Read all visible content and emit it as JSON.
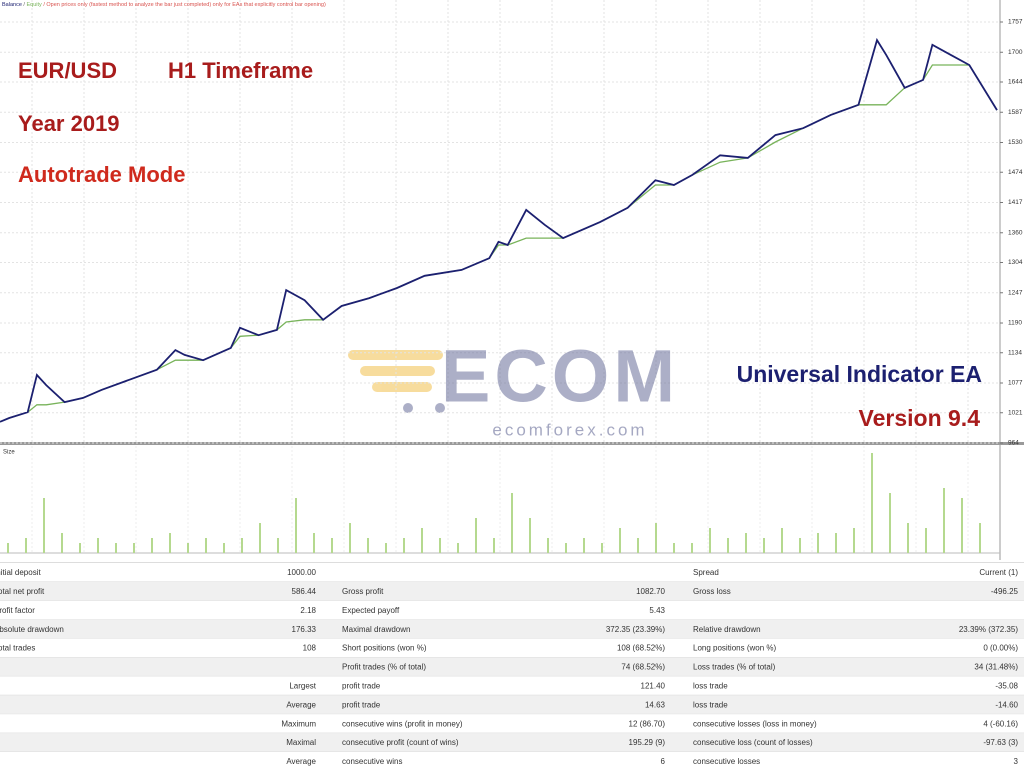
{
  "chart_data": [
    {
      "type": "line",
      "subtitle": "/ Open prices only (fastest method to analyze the bar just completed) only for EAs that explicitly control bar opening)",
      "legend_separator": "/",
      "annotations": [
        "EUR/USD",
        "H1 Timeframe",
        "Year 2019",
        "Autotrade Mode",
        "Universal Indicator EA",
        "Version 9.4"
      ],
      "x": [
        0,
        1,
        3,
        4,
        5,
        7,
        9,
        11,
        14,
        17,
        19,
        20,
        22,
        25,
        26,
        28,
        30,
        31,
        33,
        35,
        37,
        40,
        43,
        46,
        50,
        53,
        54,
        55,
        57,
        59,
        61,
        65,
        68,
        71,
        73,
        75,
        78,
        81,
        84,
        87,
        90,
        93,
        95,
        96,
        98,
        100,
        101,
        103,
        105,
        108
      ],
      "xlim": [
        0,
        108
      ],
      "ylim": [
        964,
        1757
      ],
      "yticks": [
        1757,
        1700,
        1644,
        1587,
        1530,
        1474,
        1417,
        1360,
        1304,
        1247,
        1190,
        1134,
        1077,
        1021,
        964
      ],
      "grid": true,
      "series": [
        {
          "name": "Balance",
          "color": "#1c2070",
          "values": [
            1004,
            1011,
            1022,
            1092,
            1073,
            1041,
            1049,
            1064,
            1083,
            1102,
            1139,
            1130,
            1120,
            1143,
            1181,
            1167,
            1177,
            1252,
            1233,
            1196,
            1222,
            1237,
            1256,
            1279,
            1290,
            1312,
            1343,
            1337,
            1403,
            1375,
            1350,
            1380,
            1407,
            1459,
            1450,
            1469,
            1506,
            1501,
            1544,
            1557,
            1582,
            1601,
            1723,
            1695,
            1633,
            1648,
            1714,
            1695,
            1676,
            1591
          ]
        },
        {
          "name": "Equity",
          "color": "#78b35a",
          "values": [
            1004,
            1011,
            1022,
            1036,
            1036,
            1041,
            1049,
            1064,
            1083,
            1102,
            1120,
            1120,
            1120,
            1143,
            1165,
            1167,
            1177,
            1192,
            1196,
            1196,
            1222,
            1237,
            1256,
            1279,
            1290,
            1312,
            1337,
            1337,
            1350,
            1350,
            1350,
            1380,
            1407,
            1450,
            1450,
            1469,
            1493,
            1501,
            1531,
            1557,
            1582,
            1601,
            1601,
            1601,
            1633,
            1648,
            1676,
            1676,
            1676,
            1591
          ]
        }
      ]
    },
    {
      "type": "bar",
      "title": "Size",
      "color": "#b5d98f",
      "values": [
        1,
        1.5,
        5.5,
        2,
        1,
        1.5,
        1,
        1,
        1.5,
        2,
        1,
        1.5,
        1,
        1.5,
        3,
        1.5,
        5.5,
        2,
        1.5,
        3,
        1.5,
        1,
        1.5,
        2.5,
        1.5,
        1,
        3.5,
        1.5,
        6,
        3.5,
        1.5,
        1,
        1.5,
        1,
        2.5,
        1.5,
        3,
        1,
        1,
        2.5,
        1.5,
        2,
        1.5,
        2.5,
        1.5,
        2,
        2,
        2.5,
        10,
        6,
        3,
        2.5,
        6.5,
        5.5,
        3
      ]
    }
  ],
  "logo": {
    "mark": "ECOM",
    "site": "ecomforex.com"
  },
  "report": {
    "rows": [
      [
        "Initial deposit",
        "1000.00",
        null,
        null,
        "Spread",
        "Current (1)"
      ],
      [
        "Total net profit",
        "586.44",
        "Gross profit",
        "1082.70",
        "Gross loss",
        "-496.25"
      ],
      [
        "Profit factor",
        "2.18",
        "Expected payoff",
        "5.43",
        null,
        null
      ],
      [
        "Absolute drawdown",
        "176.33",
        "Maximal drawdown",
        "372.35 (23.39%)",
        "Relative drawdown",
        "23.39% (372.35)"
      ],
      [
        "Total trades",
        "108",
        "Short positions (won %)",
        "108 (68.52%)",
        "Long positions (won %)",
        "0 (0.00%)"
      ],
      [
        null,
        null,
        "Profit trades (% of total)",
        "74 (68.52%)",
        "Loss trades (% of total)",
        "34 (31.48%)"
      ],
      [
        null,
        "Largest",
        "profit trade",
        "121.40",
        "loss trade",
        "-35.08"
      ],
      [
        null,
        "Average",
        "profit trade",
        "14.63",
        "loss trade",
        "-14.60"
      ],
      [
        null,
        "Maximum",
        "consecutive wins (profit in money)",
        "12 (86.70)",
        "consecutive losses (loss in money)",
        "4 (-60.16)"
      ],
      [
        null,
        "Maximal",
        "consecutive profit (count of wins)",
        "195.29 (9)",
        "consecutive loss (count of losses)",
        "-97.63 (3)"
      ],
      [
        null,
        "Average",
        "consecutive wins",
        "6",
        "consecutive losses",
        "3"
      ]
    ]
  }
}
